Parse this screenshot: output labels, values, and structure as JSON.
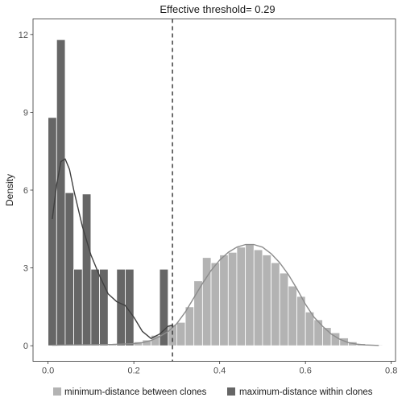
{
  "chart_data": {
    "type": "bar",
    "title": "Effective threshold= 0.29",
    "xlabel": "",
    "ylabel": "Density",
    "xlim": [
      -0.035,
      0.81
    ],
    "ylim": [
      -0.6,
      12.6
    ],
    "x_ticks": [
      0.0,
      0.2,
      0.4,
      0.6,
      0.8
    ],
    "x_tick_labels": [
      "0.0",
      "0.2",
      "0.4",
      "0.6",
      "0.8"
    ],
    "y_ticks": [
      0,
      3,
      6,
      9,
      12
    ],
    "y_tick_labels": [
      "0",
      "3",
      "6",
      "9",
      "12"
    ],
    "threshold": 0.29,
    "bin_width": 0.02,
    "grid": false,
    "legend_position": "bottom",
    "series": [
      {
        "name": "minimum-distance between clones",
        "color": "#b3b3b3",
        "line_color": "#8c8c8c",
        "bin_centers": [
          0.01,
          0.03,
          0.05,
          0.07,
          0.09,
          0.11,
          0.13,
          0.15,
          0.17,
          0.19,
          0.21,
          0.23,
          0.25,
          0.27,
          0.29,
          0.31,
          0.33,
          0.35,
          0.37,
          0.39,
          0.41,
          0.43,
          0.45,
          0.47,
          0.49,
          0.51,
          0.53,
          0.55,
          0.57,
          0.59,
          0.61,
          0.63,
          0.65,
          0.67,
          0.69,
          0.71,
          0.73,
          0.75,
          0.77
        ],
        "values": [
          0.03,
          0.03,
          0.03,
          0.04,
          0.04,
          0.04,
          0.05,
          0.05,
          0.06,
          0.1,
          0.15,
          0.22,
          0.4,
          0.6,
          0.8,
          0.9,
          1.5,
          2.5,
          3.4,
          3.2,
          3.5,
          3.6,
          3.8,
          3.9,
          3.7,
          3.5,
          3.2,
          2.8,
          2.3,
          1.9,
          1.3,
          1.0,
          0.7,
          0.5,
          0.3,
          0.15,
          0.08,
          0.05,
          0.03
        ],
        "density_x": [
          0.01,
          0.05,
          0.1,
          0.15,
          0.2,
          0.22,
          0.24,
          0.26,
          0.28,
          0.3,
          0.32,
          0.34,
          0.36,
          0.38,
          0.4,
          0.42,
          0.44,
          0.46,
          0.48,
          0.5,
          0.52,
          0.54,
          0.56,
          0.58,
          0.6,
          0.62,
          0.64,
          0.66,
          0.68,
          0.7,
          0.72,
          0.74,
          0.77
        ],
        "density_y": [
          0.02,
          0.03,
          0.04,
          0.05,
          0.08,
          0.12,
          0.2,
          0.35,
          0.55,
          0.85,
          1.3,
          1.85,
          2.4,
          2.9,
          3.3,
          3.6,
          3.8,
          3.9,
          3.9,
          3.8,
          3.55,
          3.2,
          2.75,
          2.2,
          1.6,
          1.1,
          0.75,
          0.45,
          0.25,
          0.12,
          0.06,
          0.03,
          0.01
        ]
      },
      {
        "name": "maximum-distance within clones",
        "color": "#666666",
        "line_color": "#404040",
        "bin_centers": [
          0.01,
          0.03,
          0.05,
          0.07,
          0.09,
          0.11,
          0.13,
          0.15,
          0.17,
          0.19,
          0.21,
          0.23,
          0.25,
          0.27
        ],
        "values": [
          8.8,
          11.8,
          5.9,
          2.95,
          5.85,
          2.95,
          2.95,
          0,
          2.95,
          2.95,
          0,
          0,
          0,
          2.95
        ],
        "density_x": [
          0.01,
          0.02,
          0.03,
          0.04,
          0.05,
          0.06,
          0.08,
          0.1,
          0.12,
          0.14,
          0.16,
          0.18,
          0.2,
          0.22,
          0.24,
          0.26,
          0.28,
          0.29
        ],
        "density_y": [
          4.9,
          6.2,
          7.1,
          7.2,
          6.8,
          6.0,
          4.6,
          3.5,
          2.7,
          2.0,
          1.7,
          1.55,
          1.1,
          0.55,
          0.28,
          0.45,
          0.75,
          0.8
        ]
      }
    ]
  }
}
